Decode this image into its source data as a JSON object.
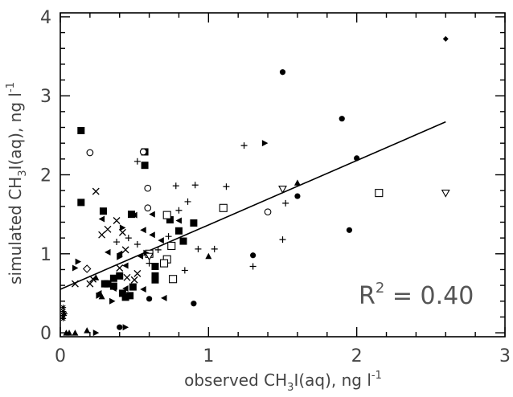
{
  "chart_data": {
    "type": "scatter",
    "title": "",
    "xlabel": {
      "prefix": "observed CH",
      "subscript": "3",
      "suffix": "I(aq), ng l",
      "superscript": "-1"
    },
    "ylabel": {
      "prefix": "simulated CH",
      "subscript": "3",
      "suffix": "I(aq), ng l",
      "superscript": "-1"
    },
    "xlim": [
      0,
      3
    ],
    "ylim": [
      -0.05,
      4.05
    ],
    "xticks": [
      {
        "v": 0,
        "label": "0"
      },
      {
        "v": 1,
        "label": "1"
      },
      {
        "v": 2,
        "label": "2"
      },
      {
        "v": 3,
        "label": "3"
      }
    ],
    "yticks": [
      {
        "v": 0,
        "label": "0"
      },
      {
        "v": 1,
        "label": "1"
      },
      {
        "v": 2,
        "label": "2"
      },
      {
        "v": 3,
        "label": "3"
      },
      {
        "v": 4,
        "label": "4"
      }
    ],
    "annotation": {
      "base": "R",
      "sup": "2",
      "rest": " = 0.40"
    },
    "fit_line": {
      "x": [
        0,
        2.6
      ],
      "y": [
        0.55,
        2.67
      ]
    },
    "series": [
      {
        "marker": "square-filled",
        "points": [
          [
            0.14,
            2.56
          ],
          [
            0.14,
            1.65
          ],
          [
            0.57,
            2.29
          ],
          [
            0.57,
            2.12
          ],
          [
            0.29,
            1.54
          ],
          [
            0.48,
            1.5
          ],
          [
            0.74,
            1.43
          ],
          [
            0.8,
            1.29
          ],
          [
            0.9,
            1.39
          ],
          [
            0.83,
            1.16
          ],
          [
            0.64,
            0.84
          ],
          [
            0.64,
            0.72
          ],
          [
            0.64,
            0.67
          ],
          [
            0.3,
            0.62
          ],
          [
            0.32,
            0.62
          ],
          [
            0.36,
            0.69
          ],
          [
            0.36,
            0.59
          ],
          [
            0.4,
            0.72
          ],
          [
            0.42,
            0.5
          ],
          [
            0.44,
            0.45
          ],
          [
            0.47,
            0.47
          ],
          [
            0.49,
            0.58
          ]
        ]
      },
      {
        "marker": "square-open",
        "points": [
          [
            0.72,
            1.49
          ],
          [
            0.72,
            0.93
          ],
          [
            0.7,
            0.88
          ],
          [
            0.6,
            1.0
          ],
          [
            0.75,
            1.1
          ],
          [
            0.76,
            0.68
          ],
          [
            1.1,
            1.58
          ],
          [
            2.15,
            1.77
          ]
        ]
      },
      {
        "marker": "circle-filled",
        "points": [
          [
            1.5,
            3.3
          ],
          [
            1.9,
            2.71
          ],
          [
            2.0,
            2.21
          ],
          [
            1.95,
            1.3
          ],
          [
            1.6,
            1.73
          ],
          [
            1.3,
            0.98
          ],
          [
            0.9,
            0.37
          ],
          [
            0.6,
            0.43
          ],
          [
            0.4,
            0.07
          ]
        ]
      },
      {
        "marker": "circle-open",
        "points": [
          [
            0.2,
            2.28
          ],
          [
            0.56,
            2.29
          ],
          [
            0.59,
            1.83
          ],
          [
            0.59,
            1.58
          ],
          [
            1.4,
            1.53
          ]
        ]
      },
      {
        "marker": "x",
        "points": [
          [
            0.24,
            1.79
          ],
          [
            0.28,
            1.24
          ],
          [
            0.32,
            1.31
          ],
          [
            0.38,
            1.42
          ],
          [
            0.42,
            1.27
          ],
          [
            0.44,
            1.05
          ],
          [
            0.4,
            0.82
          ],
          [
            0.45,
            0.7
          ],
          [
            0.5,
            0.67
          ],
          [
            0.52,
            0.75
          ],
          [
            0.2,
            0.62
          ],
          [
            0.22,
            0.68
          ],
          [
            0.1,
            0.62
          ]
        ]
      },
      {
        "marker": "plus",
        "points": [
          [
            0.52,
            2.17
          ],
          [
            0.78,
            1.86
          ],
          [
            0.86,
            1.66
          ],
          [
            0.8,
            1.55
          ],
          [
            0.91,
            1.87
          ],
          [
            1.04,
            1.06
          ],
          [
            0.93,
            1.06
          ],
          [
            0.84,
            0.79
          ],
          [
            1.12,
            1.85
          ],
          [
            1.24,
            2.37
          ],
          [
            1.3,
            0.84
          ],
          [
            1.5,
            1.18
          ],
          [
            1.52,
            1.64
          ],
          [
            0.38,
            1.15
          ],
          [
            0.6,
            0.88
          ],
          [
            0.73,
            1.22
          ],
          [
            0.66,
            1.05
          ],
          [
            0.52,
            1.12
          ],
          [
            0.46,
            1.2
          ]
        ]
      },
      {
        "marker": "triangle-left",
        "points": [
          [
            0.28,
            1.44
          ],
          [
            0.32,
            1.02
          ],
          [
            0.4,
            1.0
          ],
          [
            0.44,
            0.85
          ],
          [
            0.54,
            0.97
          ],
          [
            0.5,
            1.49
          ],
          [
            0.56,
            1.3
          ],
          [
            0.62,
            1.24
          ],
          [
            0.68,
            1.17
          ],
          [
            0.62,
            1.5
          ],
          [
            0.8,
            1.42
          ],
          [
            0.7,
            0.44
          ],
          [
            0.36,
            0.56
          ],
          [
            0.26,
            0.5
          ],
          [
            0.56,
            0.55
          ],
          [
            0.44,
            0.56
          ]
        ]
      },
      {
        "marker": "triangle-right",
        "points": [
          [
            0.12,
            0.9
          ],
          [
            0.1,
            0.82
          ],
          [
            0.42,
            1.33
          ],
          [
            0.4,
            0.96
          ],
          [
            0.58,
            1.01
          ],
          [
            1.38,
            2.4
          ],
          [
            0.26,
            0.47
          ],
          [
            0.35,
            0.4
          ],
          [
            0.24,
            0.0
          ],
          [
            0.44,
            0.07
          ]
        ]
      },
      {
        "marker": "triangle-up",
        "points": [
          [
            0.04,
            0.0
          ],
          [
            0.06,
            0.0
          ],
          [
            0.1,
            0.0
          ],
          [
            0.18,
            0.03
          ],
          [
            0.28,
            0.46
          ],
          [
            0.24,
            0.7
          ],
          [
            1.0,
            0.97
          ],
          [
            1.6,
            1.9
          ]
        ]
      },
      {
        "marker": "triangle-down",
        "points": [
          [
            1.5,
            1.82
          ],
          [
            2.6,
            1.77
          ],
          [
            0.6,
            0.97
          ]
        ]
      },
      {
        "marker": "diamond-open",
        "points": [
          [
            0.18,
            0.81
          ]
        ]
      },
      {
        "marker": "diamond-filled",
        "points": [
          [
            2.6,
            3.72
          ]
        ]
      },
      {
        "marker": "star",
        "points": [
          [
            0.02,
            0.32
          ],
          [
            0.02,
            0.27
          ],
          [
            0.02,
            0.22
          ],
          [
            0.02,
            0.18
          ],
          [
            0.03,
            0.24
          ]
        ]
      }
    ]
  }
}
